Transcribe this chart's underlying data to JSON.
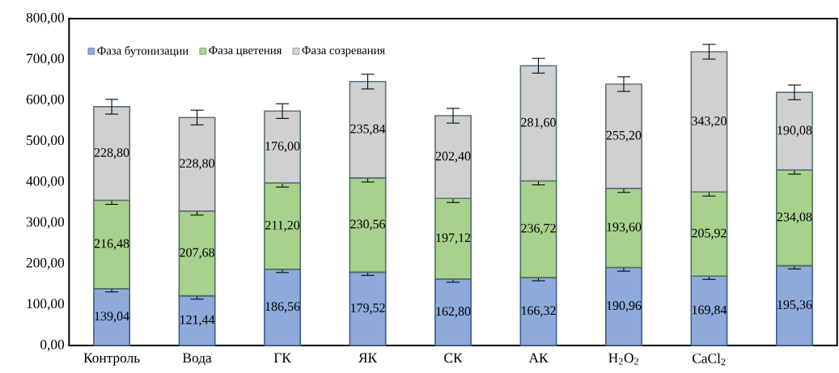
{
  "chart_data": {
    "type": "bar",
    "stacked": true,
    "categories": [
      "Контроль",
      "Вода",
      "ГК",
      "ЯК",
      "СК",
      "АК",
      "H$_{2}$O$_{2}$",
      "CaCl$_{2}$",
      null
    ],
    "series": [
      {
        "name": "Фаза бутонизации",
        "color": "#8eaadb",
        "values": [
          139.04,
          121.44,
          186.56,
          179.52,
          162.8,
          166.32,
          190.96,
          169.84,
          195.36
        ],
        "errors": [
          8,
          8,
          8,
          8,
          8,
          8,
          9,
          8,
          8
        ],
        "value_labels": [
          "139,04",
          "121,44",
          "186,56",
          "179,52",
          "162,80",
          "166,32",
          "190,96",
          "169,84",
          "195,36"
        ]
      },
      {
        "name": "Фаза цветения",
        "color": "#a9d18e",
        "values": [
          216.48,
          207.68,
          211.2,
          230.56,
          197.12,
          236.72,
          193.6,
          205.92,
          234.08
        ],
        "errors": [
          10,
          10,
          10,
          10,
          10,
          10,
          10,
          10,
          10
        ],
        "value_labels": [
          "216,48",
          "207,68",
          "211,20",
          "230,56",
          "197,12",
          "236,72",
          "193,60",
          "205,92",
          "234,08"
        ]
      },
      {
        "name": "Фаза созревания",
        "color": "#d0d0d0",
        "values": [
          228.8,
          228.8,
          176.0,
          235.84,
          202.4,
          281.6,
          255.2,
          343.2,
          190.08
        ],
        "errors": [
          18,
          18,
          18,
          18,
          18,
          18,
          18,
          18,
          18
        ],
        "value_labels": [
          "228,80",
          "228,80",
          "176,00",
          "235,84",
          "202,40",
          "281,60",
          "255,20",
          "343,20",
          "190,08"
        ]
      }
    ],
    "ylim": [
      0,
      800
    ],
    "yticks": [
      {
        "value": 0,
        "label": "0,00"
      },
      {
        "value": 100,
        "label": "100,00"
      },
      {
        "value": 200,
        "label": "200,00"
      },
      {
        "value": 300,
        "label": "300,00"
      },
      {
        "value": 400,
        "label": "400,00"
      },
      {
        "value": 500,
        "label": "500,00"
      },
      {
        "value": 600,
        "label": "600,00"
      },
      {
        "value": 700,
        "label": "700,00"
      },
      {
        "value": 800,
        "label": "800,00"
      }
    ],
    "legend": "top left",
    "grid": false
  }
}
